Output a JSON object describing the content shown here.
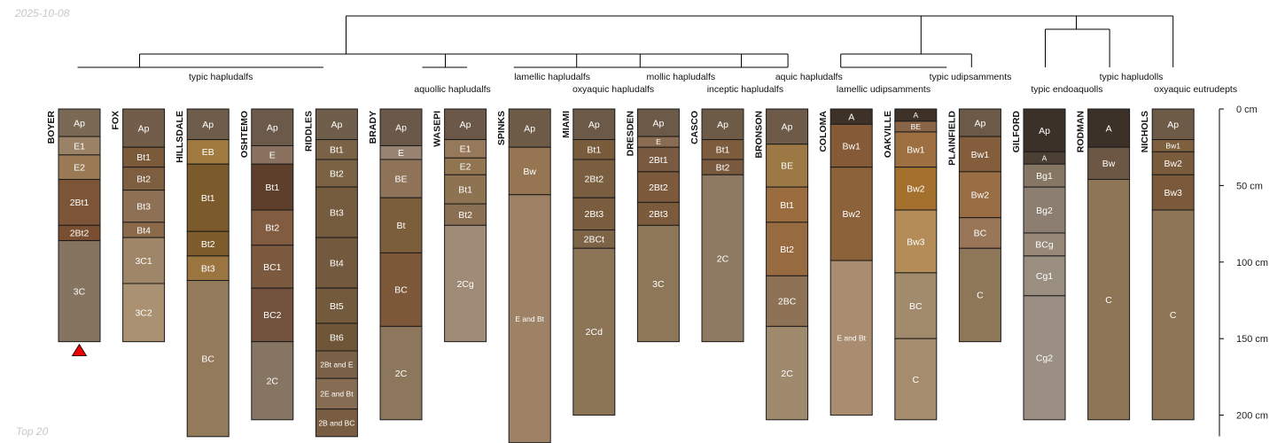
{
  "date_label": "2025-10-08",
  "footer_label": "Top 20",
  "chart_data": {
    "type": "soil-profile-sketch",
    "depth_unit": "cm",
    "depth_ticks": [
      {
        "value": 0,
        "label": "0 cm"
      },
      {
        "value": 50,
        "label": "50 cm"
      },
      {
        "value": 100,
        "label": "100 cm"
      },
      {
        "value": 150,
        "label": "150 cm"
      },
      {
        "value": 200,
        "label": "200 cm"
      }
    ],
    "ylim": [
      0,
      215
    ],
    "marker": {
      "profile": "BOYER",
      "shape": "triangle",
      "color": "#ee0000"
    },
    "taxa_labels": [
      {
        "text": "typic hapludalfs",
        "row": 0,
        "anchor": "BOYER",
        "offset": 2.2
      },
      {
        "text": "aquollic hapludalfs",
        "row": 1,
        "anchor": "BRADY",
        "offset": 0.8
      },
      {
        "text": "lamellic hapludalfs",
        "row": 0,
        "anchor": "SPINKS",
        "offset": 0.35
      },
      {
        "text": "oxyaquic hapludalfs",
        "row": 1,
        "anchor": "MIAMI",
        "offset": 0.3
      },
      {
        "text": "mollic hapludalfs",
        "row": 0,
        "anchor": "DRESDEN",
        "offset": 0.35
      },
      {
        "text": "inceptic hapludalfs",
        "row": 1,
        "anchor": "DRESDEN",
        "offset": 1.35
      },
      {
        "text": "aquic hapludalfs",
        "row": 0,
        "anchor": "BRONSON",
        "offset": 0.34
      },
      {
        "text": "lamellic udipsamments",
        "row": 1,
        "anchor": "COLOMA",
        "offset": 0.5
      },
      {
        "text": "typic udipsamments",
        "row": 0,
        "anchor": "OAKVILLE",
        "offset": 0.85
      },
      {
        "text": "typic endoaquolls",
        "row": 1,
        "anchor": "GILFORD",
        "offset": 0.35
      },
      {
        "text": "typic hapludolls",
        "row": 0,
        "anchor": "GILFORD",
        "offset": 1.35
      },
      {
        "text": "oxyaquic eutrudepts",
        "row": 1,
        "anchor": "NICHOLS",
        "offset": 0.35
      }
    ],
    "profiles": [
      {
        "name": "BOYER",
        "horizons": [
          {
            "name": "Ap",
            "top": 0,
            "bottom": 18,
            "color": "#7a6a55"
          },
          {
            "name": "E1",
            "top": 18,
            "bottom": 30,
            "color": "#9b8166"
          },
          {
            "name": "E2",
            "top": 30,
            "bottom": 46,
            "color": "#9a7a55"
          },
          {
            "name": "2Bt1",
            "top": 46,
            "bottom": 76,
            "color": "#7c5538"
          },
          {
            "name": "2Bt2",
            "top": 76,
            "bottom": 86,
            "color": "#7a4e30"
          },
          {
            "name": "3C",
            "top": 86,
            "bottom": 152,
            "color": "#857460"
          }
        ]
      },
      {
        "name": "FOX",
        "horizons": [
          {
            "name": "Ap",
            "top": 0,
            "bottom": 25,
            "color": "#715d4a"
          },
          {
            "name": "Bt1",
            "top": 25,
            "bottom": 38,
            "color": "#7b5a3a"
          },
          {
            "name": "Bt2",
            "top": 38,
            "bottom": 53,
            "color": "#7d5e3e"
          },
          {
            "name": "Bt3",
            "top": 53,
            "bottom": 74,
            "color": "#8e7054"
          },
          {
            "name": "Bt4",
            "top": 74,
            "bottom": 84,
            "color": "#8b6a4b"
          },
          {
            "name": "3C1",
            "top": 84,
            "bottom": 114,
            "color": "#a08668"
          },
          {
            "name": "3C2",
            "top": 114,
            "bottom": 152,
            "color": "#aa9171"
          }
        ]
      },
      {
        "name": "HILLSDALE",
        "horizons": [
          {
            "name": "Ap",
            "top": 0,
            "bottom": 20,
            "color": "#6e5d4a"
          },
          {
            "name": "EB",
            "top": 20,
            "bottom": 36,
            "color": "#a07a3e"
          },
          {
            "name": "Bt1",
            "top": 36,
            "bottom": 80,
            "color": "#7b5a2c"
          },
          {
            "name": "Bt2",
            "top": 80,
            "bottom": 96,
            "color": "#7e5c2c"
          },
          {
            "name": "Bt3",
            "top": 96,
            "bottom": 112,
            "color": "#9b7540"
          },
          {
            "name": "BC",
            "top": 112,
            "bottom": 214,
            "color": "#927a5b"
          }
        ]
      },
      {
        "name": "OSHTEMO",
        "horizons": [
          {
            "name": "Ap",
            "top": 0,
            "bottom": 24,
            "color": "#6b5a4a"
          },
          {
            "name": "E",
            "top": 24,
            "bottom": 36,
            "color": "#8b7260"
          },
          {
            "name": "Bt1",
            "top": 36,
            "bottom": 66,
            "color": "#5e3f2c"
          },
          {
            "name": "Bt2",
            "top": 66,
            "bottom": 89,
            "color": "#825c40"
          },
          {
            "name": "BC1",
            "top": 89,
            "bottom": 117,
            "color": "#7b5a40"
          },
          {
            "name": "BC2",
            "top": 117,
            "bottom": 152,
            "color": "#72523c"
          },
          {
            "name": "2C",
            "top": 152,
            "bottom": 203,
            "color": "#857562"
          }
        ]
      },
      {
        "name": "RIDDLES",
        "horizons": [
          {
            "name": "Ap",
            "top": 0,
            "bottom": 20,
            "color": "#6f5e4b"
          },
          {
            "name": "Bt1",
            "top": 20,
            "bottom": 33,
            "color": "#7a6246"
          },
          {
            "name": "Bt2",
            "top": 33,
            "bottom": 51,
            "color": "#7c6244"
          },
          {
            "name": "Bt3",
            "top": 51,
            "bottom": 84,
            "color": "#765c3e"
          },
          {
            "name": "Bt4",
            "top": 84,
            "bottom": 117,
            "color": "#735a3e"
          },
          {
            "name": "Bt5",
            "top": 117,
            "bottom": 140,
            "color": "#735a3d"
          },
          {
            "name": "Bt6",
            "top": 140,
            "bottom": 158,
            "color": "#6f5639"
          },
          {
            "name": "2Bt and E",
            "top": 158,
            "bottom": 176,
            "color": "#7a6046"
          },
          {
            "name": "2E and Bt",
            "top": 176,
            "bottom": 196,
            "color": "#856c52"
          },
          {
            "name": "2B and BC",
            "top": 196,
            "bottom": 214,
            "color": "#795d42"
          }
        ]
      },
      {
        "name": "BRADY",
        "horizons": [
          {
            "name": "Ap",
            "top": 0,
            "bottom": 24,
            "color": "#6a5848"
          },
          {
            "name": "E",
            "top": 24,
            "bottom": 33,
            "color": "#988272"
          },
          {
            "name": "BE",
            "top": 33,
            "bottom": 58,
            "color": "#8e7359"
          },
          {
            "name": "Bt",
            "top": 58,
            "bottom": 94,
            "color": "#7b5e3a"
          },
          {
            "name": "BC",
            "top": 94,
            "bottom": 142,
            "color": "#7c5838"
          },
          {
            "name": "2C",
            "top": 142,
            "bottom": 203,
            "color": "#8c765c"
          }
        ]
      },
      {
        "name": "WASEPI",
        "horizons": [
          {
            "name": "Ap",
            "top": 0,
            "bottom": 20,
            "color": "#6b5848"
          },
          {
            "name": "E1",
            "top": 20,
            "bottom": 32,
            "color": "#96795a"
          },
          {
            "name": "E2",
            "top": 32,
            "bottom": 43,
            "color": "#917450"
          },
          {
            "name": "Bt1",
            "top": 43,
            "bottom": 62,
            "color": "#8e7353"
          },
          {
            "name": "Bt2",
            "top": 62,
            "bottom": 76,
            "color": "#8a6f52"
          },
          {
            "name": "2Cg",
            "top": 76,
            "bottom": 152,
            "color": "#a08c76"
          }
        ]
      },
      {
        "name": "SPINKS",
        "horizons": [
          {
            "name": "Ap",
            "top": 0,
            "bottom": 25,
            "color": "#6d5b48"
          },
          {
            "name": "Bw",
            "top": 25,
            "bottom": 56,
            "color": "#967652"
          },
          {
            "name": "E and Bt",
            "top": 56,
            "bottom": 218,
            "color": "#9e8265"
          }
        ]
      },
      {
        "name": "MIAMI",
        "horizons": [
          {
            "name": "Ap",
            "top": 0,
            "bottom": 20,
            "color": "#6c5a48"
          },
          {
            "name": "Bt1",
            "top": 20,
            "bottom": 33,
            "color": "#785c3c"
          },
          {
            "name": "2Bt2",
            "top": 33,
            "bottom": 58,
            "color": "#7a5e40"
          },
          {
            "name": "2Bt3",
            "top": 58,
            "bottom": 79,
            "color": "#7a5d3e"
          },
          {
            "name": "2BCt",
            "top": 79,
            "bottom": 91,
            "color": "#7e6446"
          },
          {
            "name": "2Cd",
            "top": 91,
            "bottom": 200,
            "color": "#8c7457"
          }
        ]
      },
      {
        "name": "DRESDEN",
        "horizons": [
          {
            "name": "Ap",
            "top": 0,
            "bottom": 18,
            "color": "#6c5a48"
          },
          {
            "name": "E",
            "top": 18,
            "bottom": 25,
            "color": "#8a6c52"
          },
          {
            "name": "2Bt1",
            "top": 25,
            "bottom": 41,
            "color": "#7a5a40"
          },
          {
            "name": "2Bt2",
            "top": 41,
            "bottom": 61,
            "color": "#7d5a3c"
          },
          {
            "name": "2Bt3",
            "top": 61,
            "bottom": 76,
            "color": "#7c5a3c"
          },
          {
            "name": "3C",
            "top": 76,
            "bottom": 152,
            "color": "#8e7658"
          }
        ]
      },
      {
        "name": "CASCO",
        "horizons": [
          {
            "name": "Ap",
            "top": 0,
            "bottom": 20,
            "color": "#6d5b48"
          },
          {
            "name": "Bt1",
            "top": 20,
            "bottom": 33,
            "color": "#7d5b3d"
          },
          {
            "name": "Bt2",
            "top": 33,
            "bottom": 43,
            "color": "#7a5a3e"
          },
          {
            "name": "2C",
            "top": 43,
            "bottom": 152,
            "color": "#8e7a62"
          }
        ]
      },
      {
        "name": "BRONSON",
        "horizons": [
          {
            "name": "Ap",
            "top": 0,
            "bottom": 23,
            "color": "#6d5a48"
          },
          {
            "name": "BE",
            "top": 23,
            "bottom": 51,
            "color": "#9c7844"
          },
          {
            "name": "Bt1",
            "top": 51,
            "bottom": 74,
            "color": "#9a6c40"
          },
          {
            "name": "Bt2",
            "top": 74,
            "bottom": 109,
            "color": "#976a40"
          },
          {
            "name": "2BC",
            "top": 109,
            "bottom": 142,
            "color": "#8e7255"
          },
          {
            "name": "2C",
            "top": 142,
            "bottom": 203,
            "color": "#a08a6e"
          }
        ]
      },
      {
        "name": "COLOMA",
        "horizons": [
          {
            "name": "A",
            "top": 0,
            "bottom": 10,
            "color": "#3e3228"
          },
          {
            "name": "Bw1",
            "top": 10,
            "bottom": 38,
            "color": "#855a36"
          },
          {
            "name": "Bw2",
            "top": 38,
            "bottom": 99,
            "color": "#8c623a"
          },
          {
            "name": "E and Bt",
            "top": 99,
            "bottom": 200,
            "color": "#aa8c70"
          }
        ]
      },
      {
        "name": "OAKVILLE",
        "horizons": [
          {
            "name": "A",
            "top": 0,
            "bottom": 8,
            "color": "#3e3228"
          },
          {
            "name": "BE",
            "top": 8,
            "bottom": 15,
            "color": "#8a6446"
          },
          {
            "name": "Bw1",
            "top": 15,
            "bottom": 38,
            "color": "#9e6f40"
          },
          {
            "name": "Bw2",
            "top": 38,
            "bottom": 66,
            "color": "#a4702e"
          },
          {
            "name": "Bw3",
            "top": 66,
            "bottom": 107,
            "color": "#b48c58"
          },
          {
            "name": "BC",
            "top": 107,
            "bottom": 150,
            "color": "#a28a6c"
          },
          {
            "name": "C",
            "top": 150,
            "bottom": 203,
            "color": "#a58c6c"
          }
        ]
      },
      {
        "name": "PLAINFIELD",
        "horizons": [
          {
            "name": "Ap",
            "top": 0,
            "bottom": 18,
            "color": "#6b5a48"
          },
          {
            "name": "Bw1",
            "top": 18,
            "bottom": 41,
            "color": "#845e3c"
          },
          {
            "name": "Bw2",
            "top": 41,
            "bottom": 71,
            "color": "#9a6e44"
          },
          {
            "name": "BC",
            "top": 71,
            "bottom": 91,
            "color": "#9a7658"
          },
          {
            "name": "C",
            "top": 91,
            "bottom": 152,
            "color": "#8e7658"
          }
        ]
      },
      {
        "name": "GILFORD",
        "horizons": [
          {
            "name": "Ap",
            "top": 0,
            "bottom": 28,
            "color": "#3c3128"
          },
          {
            "name": "A",
            "top": 28,
            "bottom": 36,
            "color": "#4c4034"
          },
          {
            "name": "Bg1",
            "top": 36,
            "bottom": 51,
            "color": "#867664"
          },
          {
            "name": "Bg2",
            "top": 51,
            "bottom": 81,
            "color": "#8c7e70"
          },
          {
            "name": "BCg",
            "top": 81,
            "bottom": 96,
            "color": "#988878"
          },
          {
            "name": "Cg1",
            "top": 96,
            "bottom": 122,
            "color": "#9a8e80"
          },
          {
            "name": "Cg2",
            "top": 122,
            "bottom": 203,
            "color": "#9a8f82"
          }
        ]
      },
      {
        "name": "RODMAN",
        "horizons": [
          {
            "name": "A",
            "top": 0,
            "bottom": 25,
            "color": "#3c3128"
          },
          {
            "name": "Bw",
            "top": 25,
            "bottom": 46,
            "color": "#6c5644"
          },
          {
            "name": "C",
            "top": 46,
            "bottom": 203,
            "color": "#8e7556"
          }
        ]
      },
      {
        "name": "NICHOLS",
        "horizons": [
          {
            "name": "Ap",
            "top": 0,
            "bottom": 20,
            "color": "#6d5b48"
          },
          {
            "name": "Bw1",
            "top": 20,
            "bottom": 28,
            "color": "#7e603e"
          },
          {
            "name": "Bw2",
            "top": 28,
            "bottom": 43,
            "color": "#7a5b3b"
          },
          {
            "name": "Bw3",
            "top": 43,
            "bottom": 66,
            "color": "#7a5a3a"
          },
          {
            "name": "C",
            "top": 66,
            "bottom": 203,
            "color": "#8e7556"
          }
        ]
      }
    ]
  }
}
